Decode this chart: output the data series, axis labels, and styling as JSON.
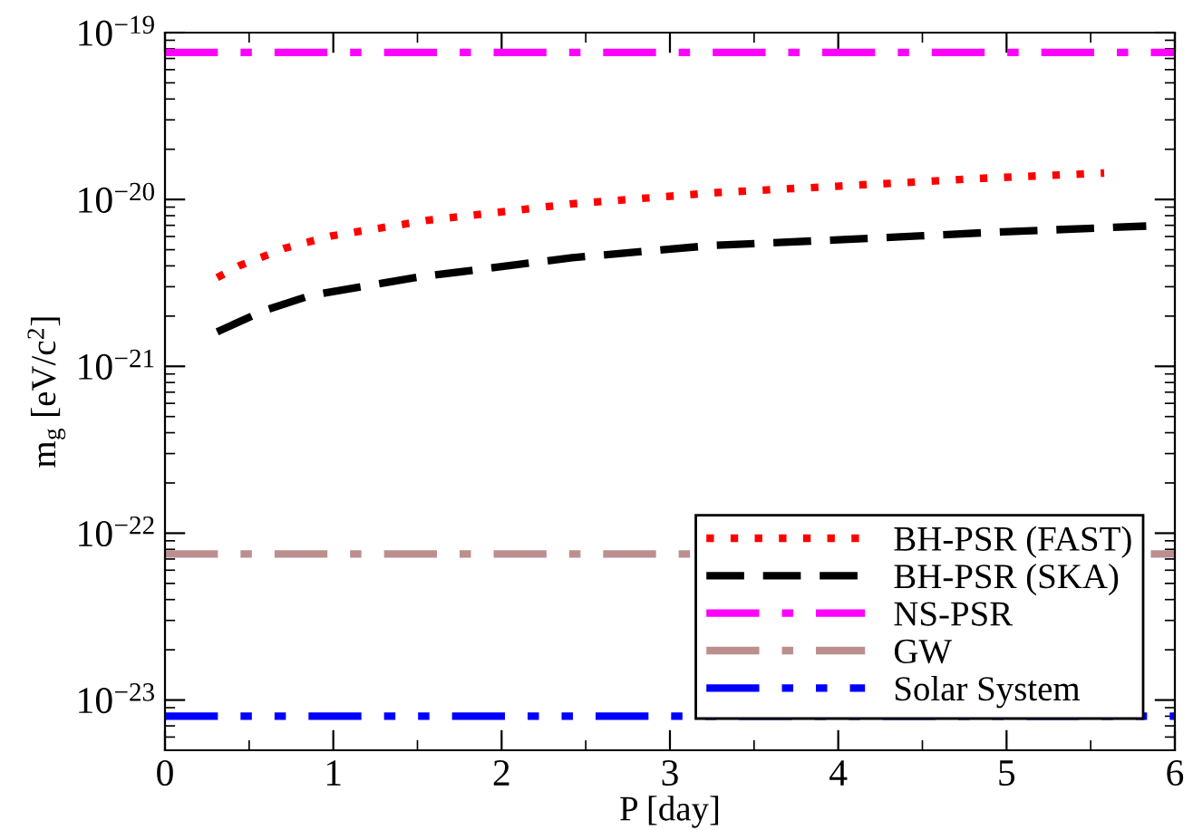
{
  "chart_data": {
    "type": "line",
    "xlabel": "P [day]",
    "ylabel": "m$_{g}$ [eV/c$^{2}$]",
    "log": "y",
    "xlim": [
      0,
      6
    ],
    "xticks": [
      0,
      1,
      2,
      3,
      4,
      5,
      6
    ],
    "ylim": [
      5e-24,
      1e-19
    ],
    "yticks": [
      {
        "value": 1e-23,
        "label": "10$^{−23}$"
      },
      {
        "value": 1e-22,
        "label": "10$^{−22}$"
      },
      {
        "value": 1e-21,
        "label": "10$^{−21}$"
      },
      {
        "value": 1e-20,
        "label": "10$^{−20}$"
      },
      {
        "value": 1e-19,
        "label": "10$^{−19}$"
      }
    ],
    "grid": false,
    "legend": "bottom right",
    "series": [
      {
        "name": "BH-PSR (FAST)",
        "color": "#ff0000",
        "line_style": "dotted",
        "x": [
          0.31,
          0.44,
          0.71,
          0.99,
          1.56,
          2.41,
          3.28,
          3.99,
          4.86,
          5.58
        ],
        "values": [
          3.4e-21,
          4e-21,
          5.1e-21,
          6.05e-21,
          7.5e-21,
          9.4e-21,
          1.1e-20,
          1.2e-20,
          1.34e-20,
          1.44e-20
        ]
      },
      {
        "name": "BH-PSR (SKA)",
        "color": "#000000",
        "line_style": "dashed",
        "x": [
          0.31,
          0.59,
          0.87,
          1.51,
          2.42,
          3.25,
          4.03,
          4.98,
          5.83
        ],
        "values": [
          1.61e-21,
          2.16e-21,
          2.67e-21,
          3.43e-21,
          4.48e-21,
          5.3e-21,
          5.75e-21,
          6.4e-21,
          6.93e-21
        ]
      },
      {
        "name": "NS-PSR",
        "color": "#ff00ff",
        "line_style": "dashdot",
        "x": [
          0,
          6
        ],
        "values": [
          7.6e-20,
          7.6e-20
        ]
      },
      {
        "name": "GW",
        "color": "#bc8f8f",
        "line_style": "dashdot",
        "x": [
          0,
          6
        ],
        "values": [
          7.5e-23,
          7.5e-23
        ]
      },
      {
        "name": "Solar System",
        "color": "#0000ff",
        "line_style": "dashdotdot",
        "x": [
          0,
          6
        ],
        "values": [
          8e-24,
          8e-24
        ]
      }
    ]
  }
}
